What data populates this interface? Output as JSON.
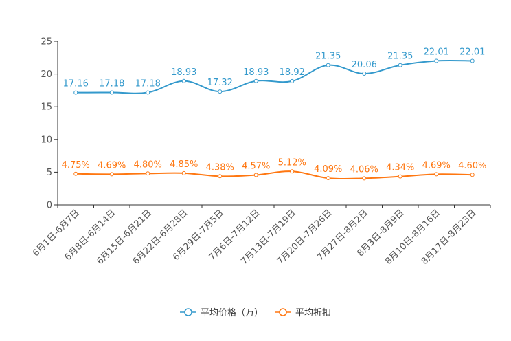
{
  "chart_data": {
    "type": "line",
    "title": "",
    "xlabel": "",
    "ylabel": "",
    "ylim": [
      0,
      25
    ],
    "yticks": [
      "0",
      "5",
      "10",
      "15",
      "20",
      "25"
    ],
    "categories": [
      "6月1日-6月7日",
      "6月8日-6月14日",
      "6月15日-6月21日",
      "6月22日-6月28日",
      "6月29日-7月5日",
      "7月6日-7月12日",
      "7月13日-7月19日",
      "7月20日-7月26日",
      "7月27日-8月2日",
      "8月3日-8月9日",
      "8月10日-8月16日",
      "8月17日-8月23日"
    ],
    "series": [
      {
        "name": "平均价格（万）",
        "color": "#3399cc",
        "values": [
          17.16,
          17.18,
          17.18,
          18.93,
          17.32,
          18.93,
          18.92,
          21.35,
          20.06,
          21.35,
          22.01,
          22.01
        ],
        "labels": [
          "17.16",
          "17.18",
          "17.18",
          "18.93",
          "17.32",
          "18.93",
          "18.92",
          "21.35",
          "20.06",
          "21.35",
          "22.01",
          "22.01"
        ]
      },
      {
        "name": "平均折扣",
        "color": "#ff7711",
        "values": [
          4.75,
          4.69,
          4.8,
          4.85,
          4.38,
          4.57,
          5.12,
          4.09,
          4.06,
          4.34,
          4.69,
          4.6
        ],
        "labels": [
          "4.75%",
          "4.69%",
          "4.80%",
          "4.85%",
          "4.38%",
          "4.57%",
          "5.12%",
          "4.09%",
          "4.06%",
          "4.34%",
          "4.69%",
          "4.60%"
        ]
      }
    ],
    "grid": false,
    "legend": "bottom-center"
  }
}
